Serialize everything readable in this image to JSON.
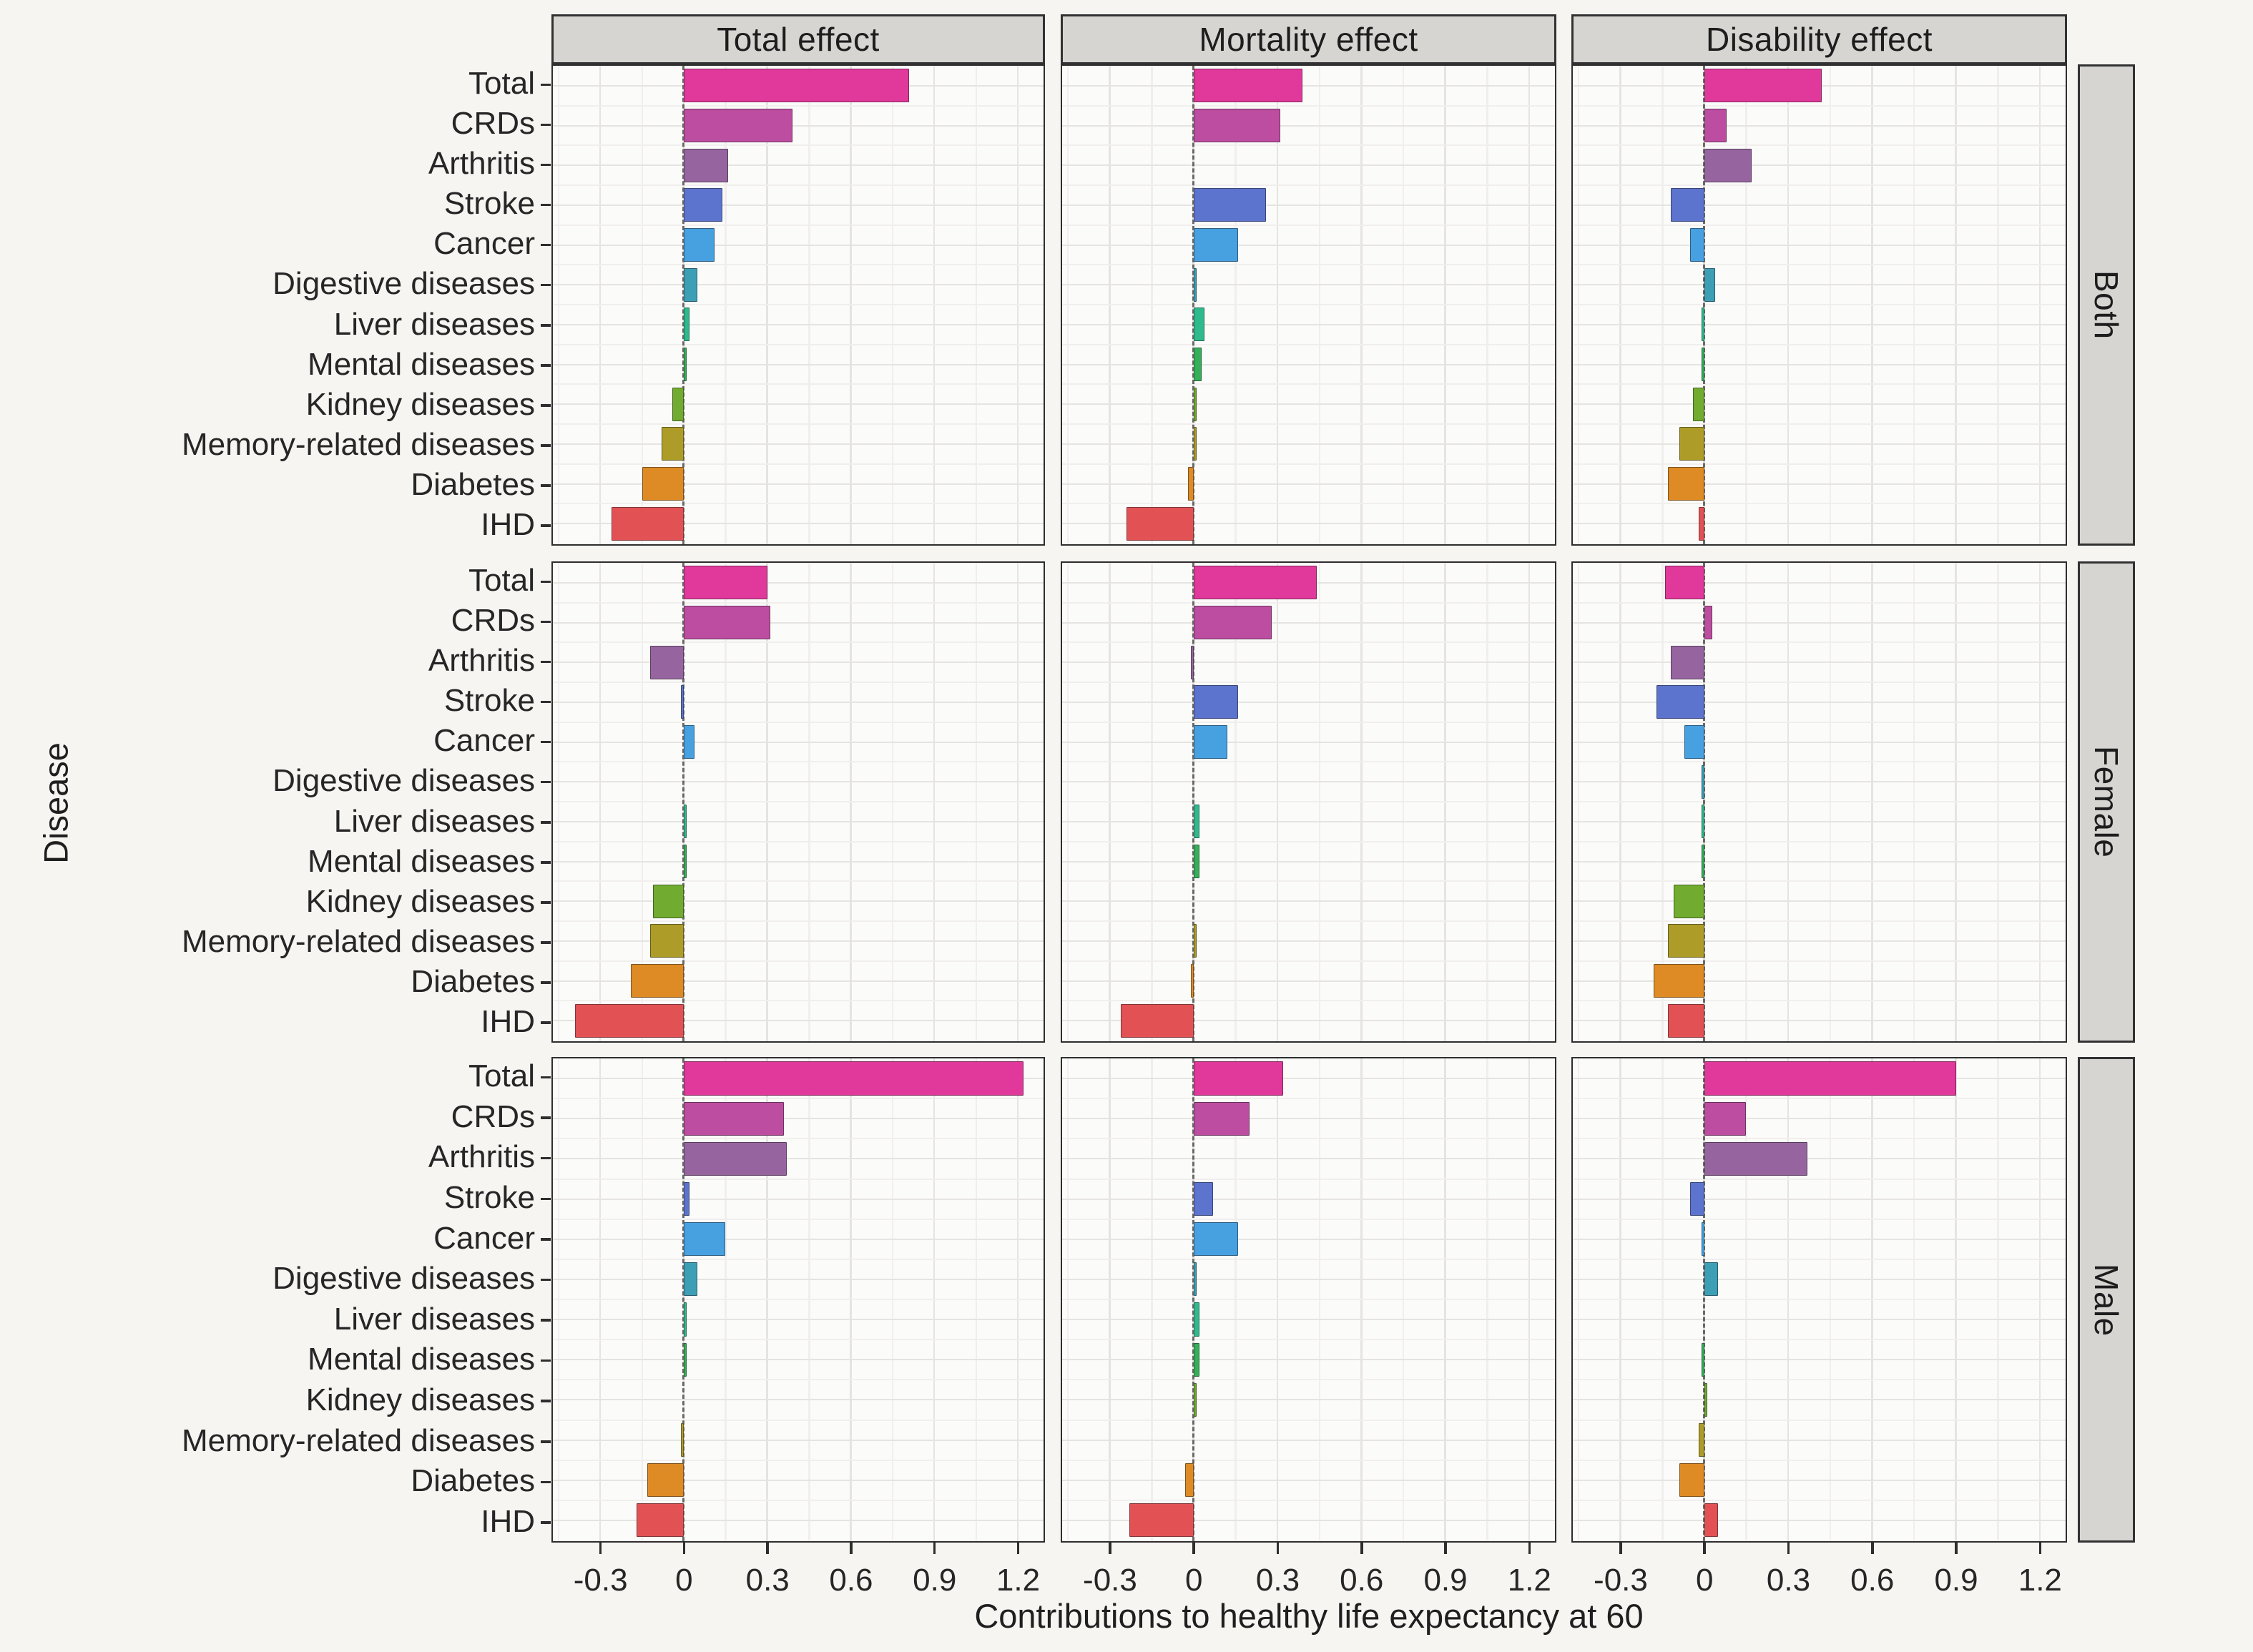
{
  "figure": {
    "column_headers": [
      "Total effect",
      "Mortality effect",
      "Disability effect"
    ],
    "row_headers": [
      "Both",
      "Female",
      "Male"
    ],
    "x_axis_title": "Contributions to healthy life expectancy at 60",
    "y_axis_title": "Disease",
    "x_tick_labels": [
      "-0.3",
      "0",
      "0.3",
      "0.6",
      "0.9",
      "1.2"
    ]
  },
  "colors": {
    "page_background": "#f6f5f2",
    "panel_background": "#fbfbfa",
    "strip_background": "#d6d5d2",
    "grid_major": "#e5e4e1",
    "grid_minor": "#f0efed",
    "axis_text": "#262626",
    "zero_line": "#6a6966",
    "panel_border": "#2e2e2e"
  },
  "chart_data": {
    "type": "bar",
    "orientation": "horizontal",
    "facet_rows": [
      "Both",
      "Female",
      "Male"
    ],
    "facet_columns": [
      "Total effect",
      "Mortality effect",
      "Disability effect"
    ],
    "categories": [
      "Total",
      "CRDs",
      "Arthritis",
      "Stroke",
      "Cancer",
      "Digestive diseases",
      "Liver diseases",
      "Mental diseases",
      "Kidney diseases",
      "Memory-related diseases",
      "Diabetes",
      "IHD"
    ],
    "xlabel": "Contributions to healthy life expectancy at 60",
    "ylabel": "Disease",
    "xlim": [
      -0.47,
      1.29
    ],
    "x_ticks": [
      -0.3,
      0,
      0.3,
      0.6,
      0.9,
      1.2
    ],
    "x_minor_ticks": [
      -0.45,
      -0.15,
      0.15,
      0.45,
      0.75,
      1.05
    ],
    "grid": true,
    "zero_reference_line": "dashed",
    "legend": "none",
    "bar_colors": {
      "Total": "#e0399b",
      "CRDs": "#bc4da0",
      "Arthritis": "#96659f",
      "Stroke": "#5c74ce",
      "Cancer": "#47a0e0",
      "Digestive diseases": "#3c9fb5",
      "Liver diseases": "#2fba8e",
      "Mental diseases": "#34b059",
      "Kidney diseases": "#71ab2f",
      "Memory-related diseases": "#ae9c28",
      "Diabetes": "#de8a25",
      "IHD": "#e25254"
    },
    "series": [
      {
        "row": "Both",
        "col": "Total effect",
        "values": [
          0.81,
          0.39,
          0.16,
          0.14,
          0.11,
          0.05,
          0.02,
          0.01,
          -0.04,
          -0.08,
          -0.15,
          -0.26
        ]
      },
      {
        "row": "Both",
        "col": "Mortality effect",
        "values": [
          0.39,
          0.31,
          0.0,
          0.26,
          0.16,
          0.01,
          0.04,
          0.03,
          0.01,
          0.01,
          -0.02,
          -0.24
        ]
      },
      {
        "row": "Both",
        "col": "Disability effect",
        "values": [
          0.42,
          0.08,
          0.17,
          -0.12,
          -0.05,
          0.04,
          -0.01,
          -0.01,
          -0.04,
          -0.09,
          -0.13,
          -0.02
        ]
      },
      {
        "row": "Female",
        "col": "Total effect",
        "values": [
          0.3,
          0.31,
          -0.12,
          -0.01,
          0.04,
          0.0,
          0.01,
          0.01,
          -0.11,
          -0.12,
          -0.19,
          -0.39
        ]
      },
      {
        "row": "Female",
        "col": "Mortality effect",
        "values": [
          0.44,
          0.28,
          -0.01,
          0.16,
          0.12,
          0.0,
          0.02,
          0.02,
          0.0,
          0.01,
          -0.01,
          -0.26
        ]
      },
      {
        "row": "Female",
        "col": "Disability effect",
        "values": [
          -0.14,
          0.03,
          -0.12,
          -0.17,
          -0.07,
          -0.01,
          -0.01,
          -0.01,
          -0.11,
          -0.13,
          -0.18,
          -0.13
        ]
      },
      {
        "row": "Male",
        "col": "Total effect",
        "values": [
          1.22,
          0.36,
          0.37,
          0.02,
          0.15,
          0.05,
          0.01,
          0.01,
          0.0,
          -0.01,
          -0.13,
          -0.17
        ]
      },
      {
        "row": "Male",
        "col": "Mortality effect",
        "values": [
          0.32,
          0.2,
          0.0,
          0.07,
          0.16,
          0.01,
          0.02,
          0.02,
          0.01,
          0.0,
          -0.03,
          -0.23
        ]
      },
      {
        "row": "Male",
        "col": "Disability effect",
        "values": [
          0.9,
          0.15,
          0.37,
          -0.05,
          -0.01,
          0.05,
          0.0,
          -0.01,
          0.01,
          -0.02,
          -0.09,
          0.05
        ]
      }
    ]
  }
}
